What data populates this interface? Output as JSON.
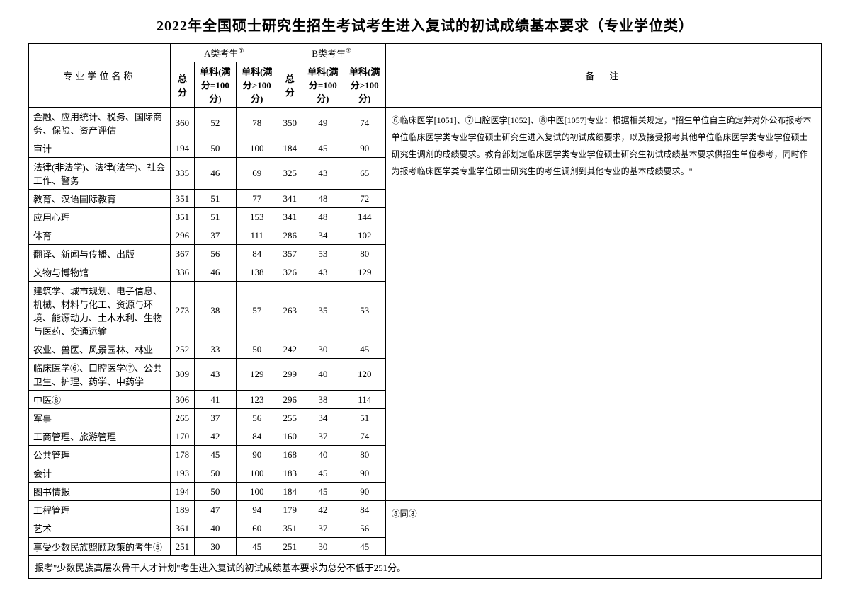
{
  "title": "2022年全国硕士研究生招生考试考生进入复试的初试成绩基本要求（专业学位类）",
  "headers": {
    "degree_name": "专业学位名称",
    "groupA": "A类考生",
    "groupA_sup": "①",
    "groupB": "B类考生",
    "groupB_sup": "②",
    "total": "总分",
    "sub_eq": "单科(满分=100分)",
    "sub_gt": "单科(满分>100分)",
    "notes_label": "备　注"
  },
  "rows": [
    {
      "name": "金融、应用统计、税务、国际商务、保险、资产评估",
      "a": [
        360,
        52,
        78
      ],
      "b": [
        350,
        49,
        74
      ]
    },
    {
      "name": "审计",
      "a": [
        194,
        50,
        100
      ],
      "b": [
        184,
        45,
        90
      ]
    },
    {
      "name": "法律(非法学)、法律(法学)、社会工作、警务",
      "a": [
        335,
        46,
        69
      ],
      "b": [
        325,
        43,
        65
      ]
    },
    {
      "name": "教育、汉语国际教育",
      "a": [
        351,
        51,
        77
      ],
      "b": [
        341,
        48,
        72
      ]
    },
    {
      "name": "应用心理",
      "a": [
        351,
        51,
        153
      ],
      "b": [
        341,
        48,
        144
      ]
    },
    {
      "name": "体育",
      "a": [
        296,
        37,
        111
      ],
      "b": [
        286,
        34,
        102
      ]
    },
    {
      "name": "翻译、新闻与传播、出版",
      "a": [
        367,
        56,
        84
      ],
      "b": [
        357,
        53,
        80
      ]
    },
    {
      "name": "文物与博物馆",
      "a": [
        336,
        46,
        138
      ],
      "b": [
        326,
        43,
        129
      ]
    },
    {
      "name": "建筑学、城市规划、电子信息、机械、材料与化工、资源与环境、能源动力、土木水利、生物与医药、交通运输",
      "a": [
        273,
        38,
        57
      ],
      "b": [
        263,
        35,
        53
      ]
    },
    {
      "name": "农业、兽医、风景园林、林业",
      "a": [
        252,
        33,
        50
      ],
      "b": [
        242,
        30,
        45
      ]
    },
    {
      "name": "临床医学⑥、口腔医学⑦、公共卫生、护理、药学、中药学",
      "a": [
        309,
        43,
        129
      ],
      "b": [
        299,
        40,
        120
      ]
    },
    {
      "name": "中医⑧",
      "a": [
        306,
        41,
        123
      ],
      "b": [
        296,
        38,
        114
      ]
    },
    {
      "name": "军事",
      "a": [
        265,
        37,
        56
      ],
      "b": [
        255,
        34,
        51
      ]
    },
    {
      "name": "工商管理、旅游管理",
      "a": [
        170,
        42,
        84
      ],
      "b": [
        160,
        37,
        74
      ]
    },
    {
      "name": "公共管理",
      "a": [
        178,
        45,
        90
      ],
      "b": [
        168,
        40,
        80
      ]
    },
    {
      "name": "会计",
      "a": [
        193,
        50,
        100
      ],
      "b": [
        183,
        45,
        90
      ]
    },
    {
      "name": "图书情报",
      "a": [
        194,
        50,
        100
      ],
      "b": [
        184,
        45,
        90
      ]
    },
    {
      "name": "工程管理",
      "a": [
        189,
        47,
        94
      ],
      "b": [
        179,
        42,
        84
      ]
    },
    {
      "name": "艺术",
      "a": [
        361,
        40,
        60
      ],
      "b": [
        351,
        37,
        56
      ]
    },
    {
      "name": "享受少数民族照顾政策的考生⑤",
      "a": [
        251,
        30,
        45
      ],
      "b": [
        251,
        30,
        45
      ]
    }
  ],
  "notes_text": "⑥临床医学[1051]、⑦口腔医学[1052]、⑧中医[1057]专业：根据相关规定，\"招生单位自主确定并对外公布报考本单位临床医学类专业学位硕士研究生进入复试的初试成绩要求，以及接受报考其他单位临床医学类专业学位硕士研究生调剂的成绩要求。教育部划定临床医学类专业学位硕士研究生初试成绩基本要求供招生单位参考，同时作为报考临床医学类专业学位硕士研究生的考生调剂到其他专业的基本成绩要求。\"",
  "notes_tail": "⑤同③",
  "footnote": "报考\"少数民族高层次骨干人才计划\"考生进入复试的初试成绩基本要求为总分不低于251分。"
}
